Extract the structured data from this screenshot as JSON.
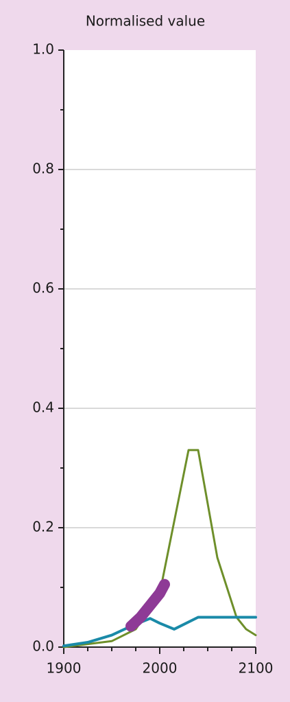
{
  "chart_data": {
    "type": "line",
    "title": "Normalised value",
    "xlim": [
      1900,
      2100
    ],
    "xticks": [
      1900,
      2000,
      2100
    ],
    "xminorticks": [
      1925,
      1950,
      1975,
      2025,
      2050,
      2075
    ],
    "ylim": [
      0,
      1
    ],
    "yticks": [
      {
        "value": 0,
        "label": "0.0"
      },
      0.2,
      0.4,
      0.6,
      0.8,
      {
        "value": 1,
        "label": "1.0"
      }
    ],
    "yminorticks": [
      0.1,
      0.3,
      0.5,
      0.7,
      0.9
    ],
    "grid": true,
    "series": [
      {
        "color": "#6e8f2a",
        "width": 3,
        "x": [
          1900,
          1950,
          1975,
          2000,
          2010,
          2030,
          2040,
          2060,
          2080,
          2090,
          2100
        ],
        "values": [
          0,
          0.01,
          0.03,
          0.09,
          0.17,
          0.33,
          0.33,
          0.15,
          0.05,
          0.03,
          0.02
        ]
      },
      {
        "color": "#1a8aa8",
        "width": 4,
        "x": [
          1900,
          1925,
          1950,
          1970,
          1990,
          2000,
          2015,
          2040,
          2100
        ],
        "values": [
          0.002,
          0.008,
          0.02,
          0.035,
          0.048,
          0.04,
          0.03,
          0.05,
          0.05
        ]
      },
      {
        "color": "#8e3a96",
        "width": 16,
        "x": [
          1970,
          1980,
          1990,
          2000,
          2005
        ],
        "values": [
          0.035,
          0.05,
          0.07,
          0.09,
          0.105
        ]
      }
    ]
  }
}
